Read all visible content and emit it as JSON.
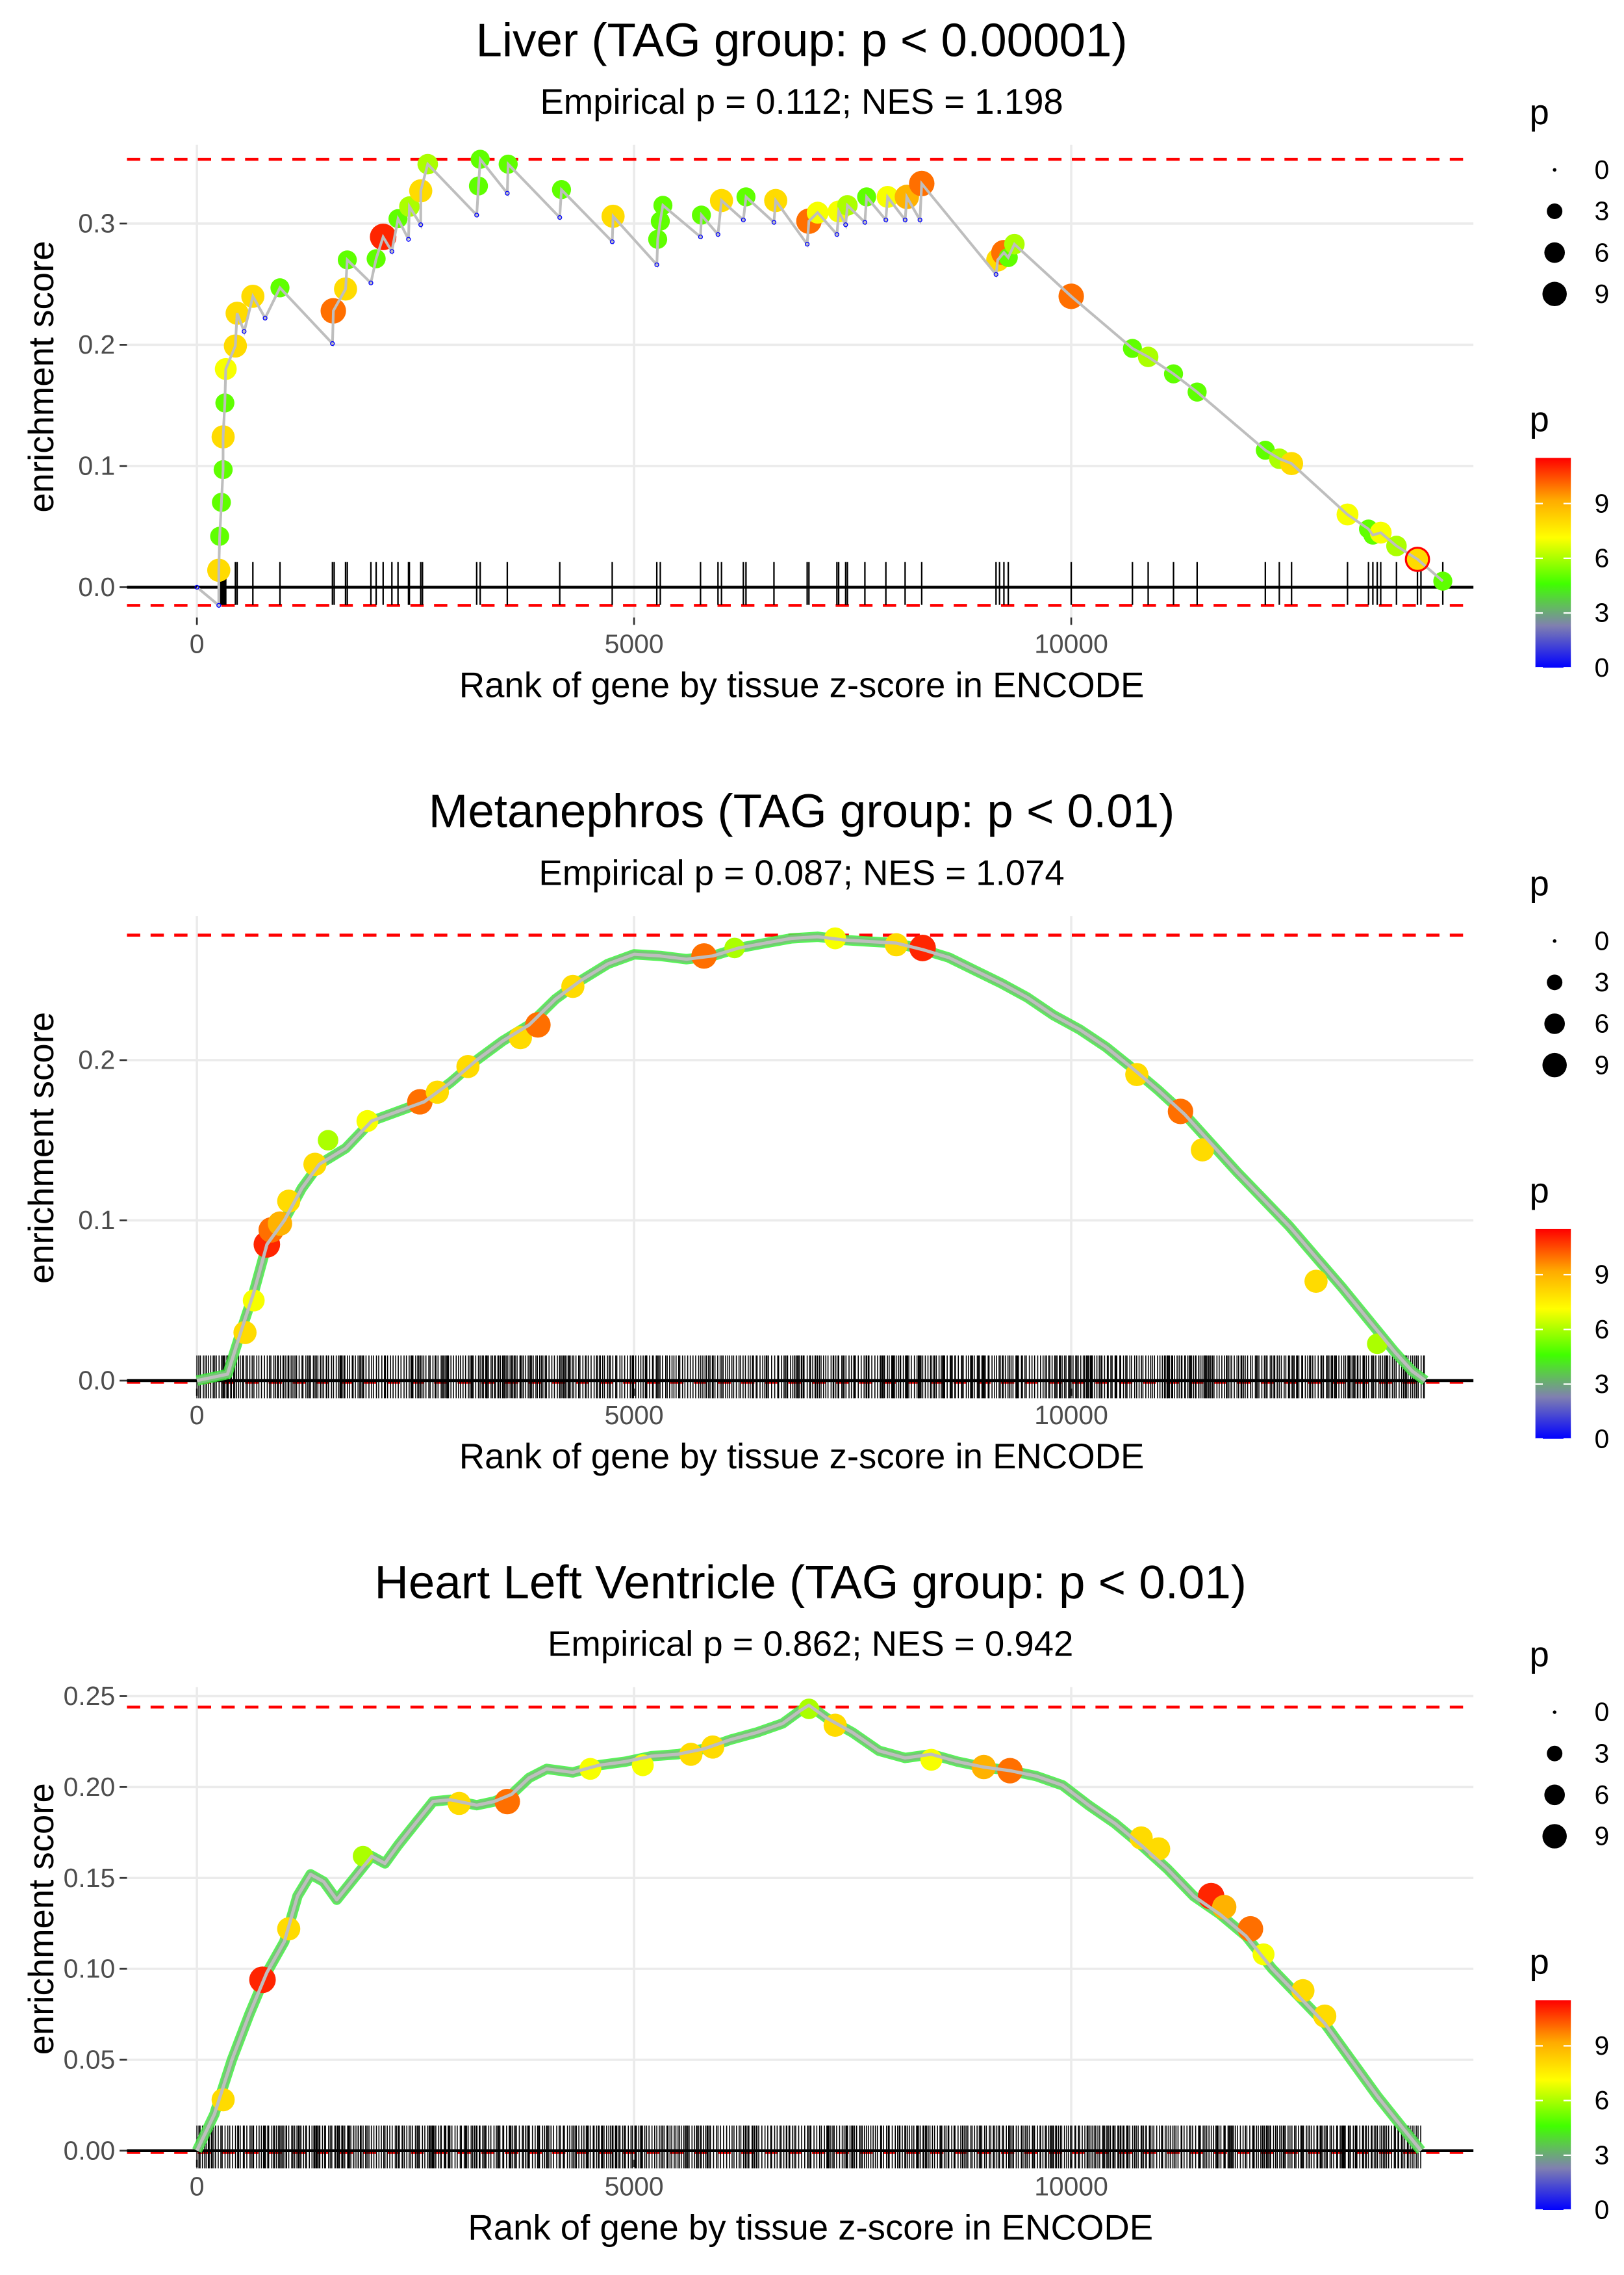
{
  "chart_data": [
    {
      "type": "line",
      "title": "Liver (TAG group: p < 0.00001)",
      "subtitle": "Empirical p = 0.112; NES = 1.198",
      "xlabel": "Rank of gene by tissue z-score in ENCODE",
      "ylabel": "enrichment score",
      "xlim": [
        -800,
        14600
      ],
      "ylim": [
        -0.025,
        0.365
      ],
      "x_ticks": [
        0,
        5000,
        10000
      ],
      "x_tick_labels": [
        "0",
        "5000",
        "10000"
      ],
      "y_ticks": [
        0.0,
        0.1,
        0.2,
        0.3
      ],
      "y_tick_labels": [
        "0.0",
        "0.1",
        "0.2",
        "0.3"
      ],
      "max_es_line": 0.353,
      "min_es_line": -0.015,
      "grid": true,
      "points": [
        [
          0,
          0.0,
          0
        ],
        [
          250,
          -0.015,
          0
        ],
        [
          250,
          0.014,
          8
        ],
        [
          260,
          0.042,
          5
        ],
        [
          280,
          0.07,
          5
        ],
        [
          300,
          0.097,
          5
        ],
        [
          300,
          0.124,
          8
        ],
        [
          320,
          0.152,
          5
        ],
        [
          330,
          0.18,
          7
        ],
        [
          440,
          0.199,
          8
        ],
        [
          460,
          0.226,
          8
        ],
        [
          540,
          0.211,
          0
        ],
        [
          640,
          0.24,
          8
        ],
        [
          780,
          0.222,
          0
        ],
        [
          950,
          0.247,
          5
        ],
        [
          1550,
          0.201,
          0
        ],
        [
          1560,
          0.228,
          10
        ],
        [
          1700,
          0.246,
          8
        ],
        [
          1720,
          0.27,
          5
        ],
        [
          1990,
          0.251,
          0
        ],
        [
          2050,
          0.271,
          5
        ],
        [
          2130,
          0.289,
          11
        ],
        [
          2230,
          0.277,
          0
        ],
        [
          2300,
          0.304,
          5
        ],
        [
          2420,
          0.287,
          0
        ],
        [
          2430,
          0.314,
          6
        ],
        [
          2560,
          0.299,
          0
        ],
        [
          2560,
          0.327,
          8
        ],
        [
          2640,
          0.349,
          6
        ],
        [
          3200,
          0.307,
          0
        ],
        [
          3220,
          0.331,
          5
        ],
        [
          3240,
          0.353,
          5
        ],
        [
          3550,
          0.325,
          0
        ],
        [
          3560,
          0.349,
          5
        ],
        [
          4150,
          0.305,
          0
        ],
        [
          4170,
          0.328,
          5
        ],
        [
          4750,
          0.285,
          0
        ],
        [
          4760,
          0.306,
          8
        ],
        [
          5260,
          0.266,
          0
        ],
        [
          5270,
          0.287,
          5
        ],
        [
          5300,
          0.302,
          5
        ],
        [
          5330,
          0.315,
          5
        ],
        [
          5760,
          0.289,
          0
        ],
        [
          5770,
          0.307,
          5
        ],
        [
          5960,
          0.291,
          0
        ],
        [
          6000,
          0.319,
          8
        ],
        [
          6250,
          0.303,
          0
        ],
        [
          6280,
          0.322,
          5
        ],
        [
          6600,
          0.301,
          0
        ],
        [
          6620,
          0.319,
          8
        ],
        [
          6980,
          0.283,
          0
        ],
        [
          7000,
          0.302,
          10
        ],
        [
          7100,
          0.309,
          7
        ],
        [
          7320,
          0.291,
          0
        ],
        [
          7340,
          0.31,
          7
        ],
        [
          7420,
          0.299,
          0
        ],
        [
          7440,
          0.315,
          6
        ],
        [
          7640,
          0.301,
          0
        ],
        [
          7660,
          0.322,
          5
        ],
        [
          7880,
          0.303,
          0
        ],
        [
          7900,
          0.322,
          7
        ],
        [
          8100,
          0.303,
          0
        ],
        [
          8120,
          0.322,
          9
        ],
        [
          8270,
          0.303,
          0
        ],
        [
          8290,
          0.333,
          10
        ],
        [
          9140,
          0.258,
          0
        ],
        [
          9160,
          0.27,
          8
        ],
        [
          9230,
          0.276,
          10
        ],
        [
          9280,
          0.272,
          5
        ],
        [
          9350,
          0.283,
          6
        ],
        [
          10000,
          0.24,
          10
        ],
        [
          10700,
          0.197,
          5
        ],
        [
          10880,
          0.19,
          6
        ],
        [
          11170,
          0.176,
          5
        ],
        [
          11440,
          0.161,
          5
        ],
        [
          12220,
          0.113,
          5
        ],
        [
          12380,
          0.106,
          6
        ],
        [
          12520,
          0.102,
          8
        ],
        [
          13160,
          0.06,
          7
        ],
        [
          13400,
          0.048,
          5
        ],
        [
          13450,
          0.043,
          5
        ],
        [
          13540,
          0.045,
          7
        ],
        [
          13720,
          0.034,
          6
        ],
        [
          13960,
          0.023,
          8
        ],
        [
          14250,
          0.005,
          5
        ]
      ],
      "rug_ranks": [
        250,
        260,
        270,
        280,
        290,
        300,
        310,
        320,
        330,
        440,
        460,
        640,
        950,
        1550,
        1570,
        1700,
        1720,
        1990,
        2050,
        2130,
        2230,
        2300,
        2420,
        2430,
        2560,
        2580,
        3200,
        3240,
        3550,
        4150,
        4750,
        5260,
        5300,
        5760,
        5960,
        6000,
        6250,
        6280,
        6600,
        6980,
        7000,
        7320,
        7340,
        7420,
        7440,
        7640,
        7880,
        8100,
        8290,
        9140,
        9180,
        9230,
        9280,
        10000,
        10700,
        10880,
        11170,
        11440,
        12220,
        12380,
        12520,
        13160,
        13400,
        13450,
        13500,
        13540,
        13720,
        13960,
        14000,
        14250
      ]
    },
    {
      "type": "line",
      "title": "Metanephros (TAG group: p < 0.01)",
      "subtitle": "Empirical p = 0.087; NES = 1.074",
      "xlabel": "Rank of gene by tissue z-score in ENCODE",
      "ylabel": "enrichment score",
      "xlim": [
        -800,
        14600
      ],
      "ylim": [
        -0.005,
        0.29
      ],
      "x_ticks": [
        0,
        5000,
        10000
      ],
      "x_tick_labels": [
        "0",
        "5000",
        "10000"
      ],
      "y_ticks": [
        0.0,
        0.1,
        0.2
      ],
      "y_tick_labels": [
        "0.0",
        "0.1",
        "0.2"
      ],
      "max_es_line": 0.278,
      "min_es_line": -0.001,
      "grid": true,
      "curve": [
        [
          0,
          0.0
        ],
        [
          350,
          0.004
        ],
        [
          500,
          0.03
        ],
        [
          650,
          0.055
        ],
        [
          800,
          0.085
        ],
        [
          1000,
          0.1
        ],
        [
          1200,
          0.12
        ],
        [
          1400,
          0.135
        ],
        [
          1700,
          0.145
        ],
        [
          2000,
          0.162
        ],
        [
          2300,
          0.168
        ],
        [
          2600,
          0.174
        ],
        [
          2900,
          0.186
        ],
        [
          3200,
          0.2
        ],
        [
          3500,
          0.212
        ],
        [
          3800,
          0.222
        ],
        [
          4100,
          0.238
        ],
        [
          4400,
          0.25
        ],
        [
          4700,
          0.26
        ],
        [
          5000,
          0.266
        ],
        [
          5300,
          0.265
        ],
        [
          5600,
          0.263
        ],
        [
          5900,
          0.265
        ],
        [
          6200,
          0.27
        ],
        [
          6500,
          0.273
        ],
        [
          6800,
          0.276
        ],
        [
          7100,
          0.277
        ],
        [
          7400,
          0.275
        ],
        [
          7700,
          0.274
        ],
        [
          8000,
          0.273
        ],
        [
          8300,
          0.269
        ],
        [
          8600,
          0.264
        ],
        [
          8900,
          0.256
        ],
        [
          9200,
          0.248
        ],
        [
          9500,
          0.239
        ],
        [
          9800,
          0.228
        ],
        [
          10100,
          0.219
        ],
        [
          10400,
          0.208
        ],
        [
          10700,
          0.195
        ],
        [
          11000,
          0.181
        ],
        [
          11300,
          0.166
        ],
        [
          11600,
          0.148
        ],
        [
          11900,
          0.13
        ],
        [
          12200,
          0.113
        ],
        [
          12500,
          0.096
        ],
        [
          12800,
          0.077
        ],
        [
          13100,
          0.058
        ],
        [
          13400,
          0.038
        ],
        [
          13700,
          0.018
        ],
        [
          13900,
          0.006
        ],
        [
          14050,
          0.0
        ]
      ],
      "highlight_points": [
        [
          550,
          0.03,
          8
        ],
        [
          650,
          0.05,
          7
        ],
        [
          800,
          0.085,
          11
        ],
        [
          850,
          0.094,
          10
        ],
        [
          950,
          0.098,
          9
        ],
        [
          1050,
          0.112,
          8
        ],
        [
          1350,
          0.135,
          8
        ],
        [
          1500,
          0.15,
          6
        ],
        [
          1950,
          0.162,
          7
        ],
        [
          2550,
          0.174,
          10
        ],
        [
          2750,
          0.18,
          8
        ],
        [
          3100,
          0.196,
          8
        ],
        [
          3700,
          0.214,
          8
        ],
        [
          3900,
          0.222,
          10
        ],
        [
          4300,
          0.246,
          8
        ],
        [
          5800,
          0.265,
          10
        ],
        [
          6150,
          0.27,
          6
        ],
        [
          7300,
          0.276,
          7
        ],
        [
          8000,
          0.272,
          8
        ],
        [
          8300,
          0.27,
          11
        ],
        [
          10750,
          0.191,
          8
        ],
        [
          11250,
          0.168,
          10
        ],
        [
          11500,
          0.144,
          8
        ],
        [
          12800,
          0.062,
          8
        ],
        [
          13500,
          0.023,
          6
        ]
      ],
      "rug": {
        "from": 0,
        "to": 14050,
        "density": "dense"
      }
    },
    {
      "type": "line",
      "title": "Heart Left Ventricle (TAG group: p < 0.01)",
      "subtitle": "Empirical p = 0.862; NES = 0.942",
      "xlabel": "Rank of gene by tissue z-score in ENCODE",
      "ylabel": "enrichment score",
      "xlim": [
        -800,
        14600
      ],
      "ylim": [
        -0.005,
        0.255
      ],
      "x_ticks": [
        0,
        5000,
        10000
      ],
      "x_tick_labels": [
        "0",
        "5000",
        "10000"
      ],
      "y_ticks": [
        0.0,
        0.05,
        0.1,
        0.15,
        0.2,
        0.25
      ],
      "y_tick_labels": [
        "0.00",
        "0.05",
        "0.10",
        "0.15",
        "0.20",
        "0.25"
      ],
      "max_es_line": 0.244,
      "min_es_line": -0.001,
      "grid": true,
      "curve": [
        [
          0,
          0.0
        ],
        [
          200,
          0.02
        ],
        [
          400,
          0.05
        ],
        [
          600,
          0.075
        ],
        [
          800,
          0.098
        ],
        [
          1000,
          0.115
        ],
        [
          1150,
          0.14
        ],
        [
          1300,
          0.152
        ],
        [
          1450,
          0.148
        ],
        [
          1600,
          0.138
        ],
        [
          1800,
          0.15
        ],
        [
          2000,
          0.162
        ],
        [
          2150,
          0.158
        ],
        [
          2300,
          0.168
        ],
        [
          2500,
          0.18
        ],
        [
          2700,
          0.192
        ],
        [
          2900,
          0.193
        ],
        [
          3200,
          0.19
        ],
        [
          3400,
          0.192
        ],
        [
          3600,
          0.196
        ],
        [
          3800,
          0.205
        ],
        [
          4000,
          0.21
        ],
        [
          4300,
          0.208
        ],
        [
          4600,
          0.212
        ],
        [
          4900,
          0.214
        ],
        [
          5200,
          0.217
        ],
        [
          5500,
          0.218
        ],
        [
          5800,
          0.221
        ],
        [
          6100,
          0.226
        ],
        [
          6400,
          0.23
        ],
        [
          6700,
          0.235
        ],
        [
          6900,
          0.242
        ],
        [
          7000,
          0.245
        ],
        [
          7200,
          0.238
        ],
        [
          7500,
          0.23
        ],
        [
          7800,
          0.22
        ],
        [
          8100,
          0.216
        ],
        [
          8400,
          0.218
        ],
        [
          8700,
          0.214
        ],
        [
          9000,
          0.211
        ],
        [
          9300,
          0.209
        ],
        [
          9600,
          0.206
        ],
        [
          9900,
          0.201
        ],
        [
          10200,
          0.19
        ],
        [
          10500,
          0.18
        ],
        [
          10800,
          0.168
        ],
        [
          11100,
          0.155
        ],
        [
          11400,
          0.14
        ],
        [
          11700,
          0.13
        ],
        [
          12000,
          0.118
        ],
        [
          12300,
          0.1
        ],
        [
          12600,
          0.085
        ],
        [
          12900,
          0.07
        ],
        [
          13200,
          0.05
        ],
        [
          13500,
          0.03
        ],
        [
          13800,
          0.012
        ],
        [
          14000,
          0.0
        ]
      ],
      "highlight_points": [
        [
          300,
          0.028,
          8
        ],
        [
          750,
          0.094,
          11
        ],
        [
          1050,
          0.122,
          8
        ],
        [
          1900,
          0.162,
          6
        ],
        [
          3000,
          0.191,
          8
        ],
        [
          3550,
          0.192,
          10
        ],
        [
          4500,
          0.21,
          7
        ],
        [
          5100,
          0.212,
          7
        ],
        [
          5650,
          0.218,
          8
        ],
        [
          5900,
          0.222,
          8
        ],
        [
          7000,
          0.243,
          6
        ],
        [
          7300,
          0.234,
          8
        ],
        [
          8400,
          0.215,
          7
        ],
        [
          9000,
          0.211,
          9
        ],
        [
          9300,
          0.209,
          10
        ],
        [
          10800,
          0.172,
          8
        ],
        [
          11000,
          0.166,
          8
        ],
        [
          11600,
          0.14,
          11
        ],
        [
          11750,
          0.134,
          9
        ],
        [
          12050,
          0.122,
          10
        ],
        [
          12200,
          0.108,
          7
        ],
        [
          12650,
          0.088,
          8
        ],
        [
          12900,
          0.074,
          8
        ]
      ],
      "rug": {
        "from": 0,
        "to": 14000,
        "density": "dense"
      }
    }
  ],
  "legend": {
    "size_title": "p",
    "size_entries": [
      "0",
      "3",
      "6",
      "9"
    ],
    "color_title": "p",
    "color_ticks": [
      "9",
      "6",
      "3",
      "0"
    ],
    "color_range": [
      0,
      11.5
    ],
    "color_stops": [
      "#0000ff",
      "#7f7fbf",
      "#44ff00",
      "#ffff00",
      "#ffa500",
      "#ff0000"
    ]
  },
  "colors": {
    "max_line": "#ff0000",
    "es_line": "#bebebe",
    "rug": "#000000",
    "grid": "#ebebeb"
  }
}
